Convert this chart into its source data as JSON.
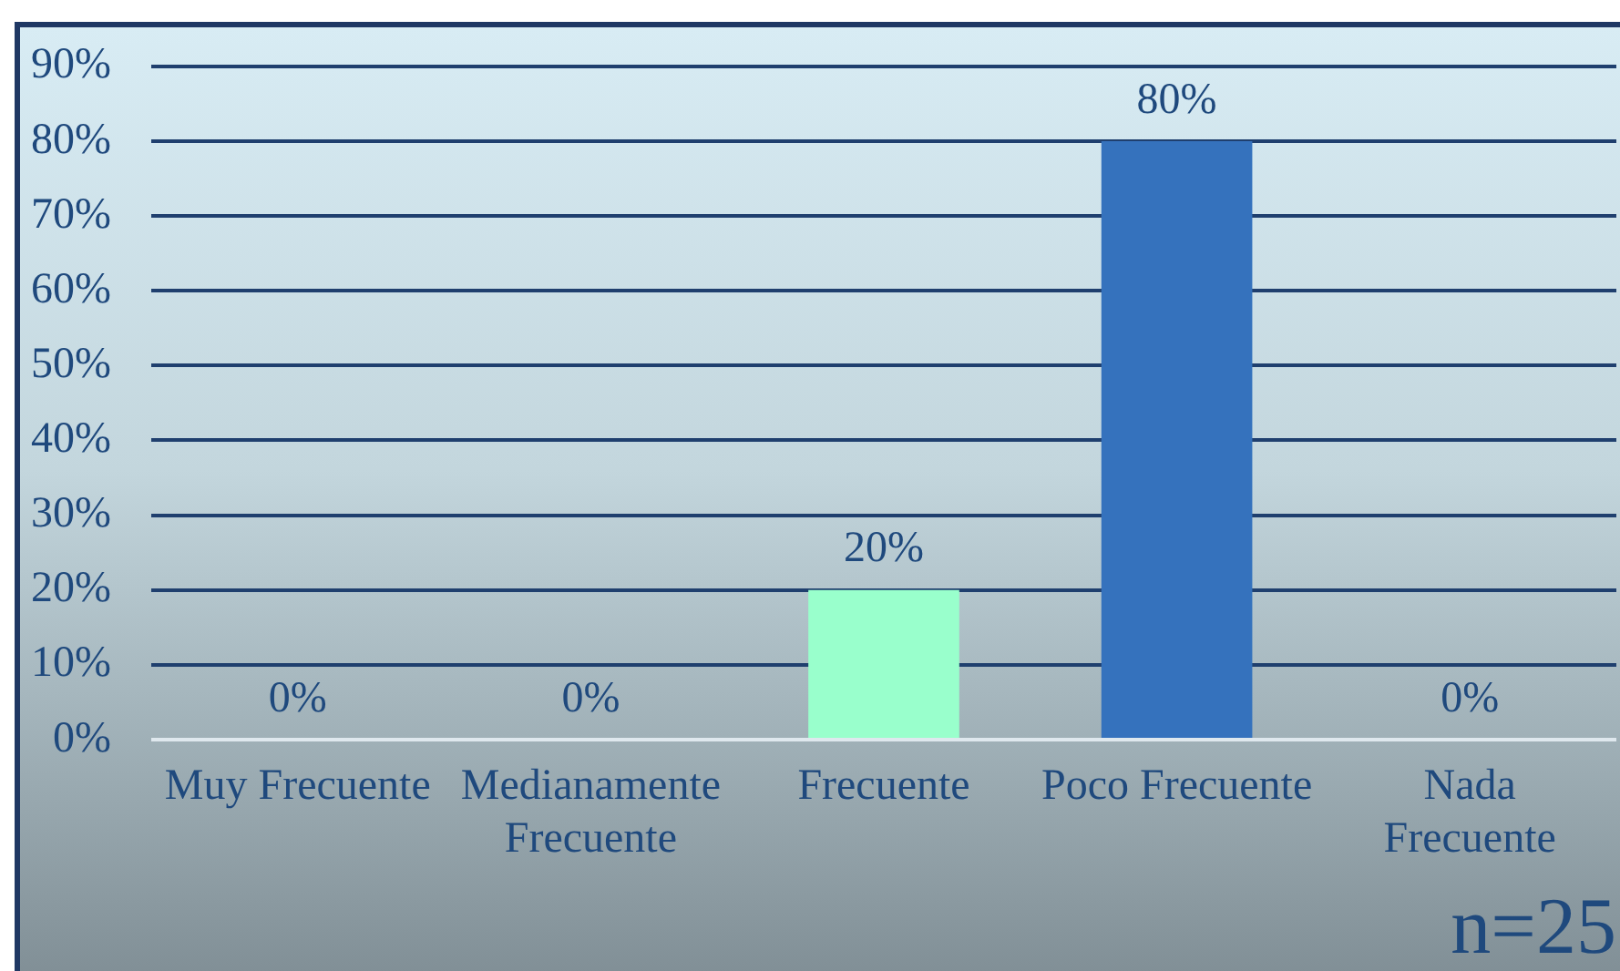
{
  "chart_data": {
    "type": "bar",
    "categories": [
      "Muy Frecuente",
      "Medianamente Frecuente",
      "Frecuente",
      "Poco Frecuente",
      "Nada Frecuente"
    ],
    "values": [
      0,
      0,
      20,
      80,
      0
    ],
    "colors": [
      "#4f81bd",
      "#4f81bd",
      "#99ffcc",
      "#3572bd",
      "#4f81bd"
    ],
    "value_labels": [
      "0%",
      "0%",
      "20%",
      "80%",
      "0%"
    ],
    "ylim": [
      0,
      90
    ],
    "yticks": [
      {
        "value": 0,
        "label": "0%"
      },
      {
        "value": 10,
        "label": "10%"
      },
      {
        "value": 20,
        "label": "20%"
      },
      {
        "value": 30,
        "label": "30%"
      },
      {
        "value": 40,
        "label": "40%"
      },
      {
        "value": 50,
        "label": "50%"
      },
      {
        "value": 60,
        "label": "60%"
      },
      {
        "value": 70,
        "label": "70%"
      },
      {
        "value": 80,
        "label": "80%"
      },
      {
        "value": 90,
        "label": "90%"
      }
    ],
    "grid": "y",
    "annotations": [
      "n=25"
    ]
  }
}
